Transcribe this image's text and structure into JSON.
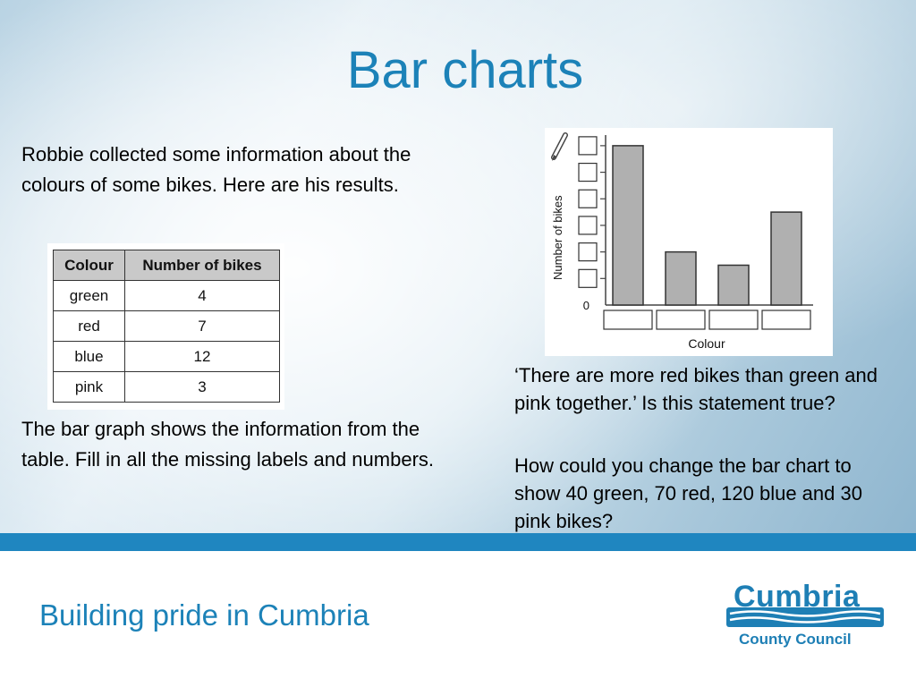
{
  "slide": {
    "title": "Bar charts",
    "intro": "Robbie collected some information about the colours of some bikes. Here are his results.",
    "instructions": "The bar graph shows the information from the table. Fill in all the missing labels and numbers.",
    "question1": "‘There are more red bikes than green and pink together.’ Is this statement true?",
    "question2": "How could you change the bar chart to show 40 green, 70 red, 120 blue and 30 pink bikes?"
  },
  "table": {
    "headers": [
      "Colour",
      "Number of bikes"
    ],
    "rows": [
      [
        "green",
        "4"
      ],
      [
        "red",
        "7"
      ],
      [
        "blue",
        "12"
      ],
      [
        "pink",
        "3"
      ]
    ]
  },
  "chart_data": {
    "type": "bar",
    "categories": [
      "",
      "",
      "",
      ""
    ],
    "values": [
      12,
      4,
      3,
      7
    ],
    "xlabel": "Colour",
    "ylabel": "Number of bikes",
    "y_tick_labels": [
      "0"
    ],
    "ylim": [
      0,
      12.8
    ],
    "grid": false,
    "bar_color": "#b0b0b0"
  },
  "footer": {
    "text": "Building pride in Cumbria",
    "logo_name": "Cumbria",
    "logo_sub": "County Council"
  },
  "colors": {
    "accent": "#1c82b8",
    "band": "#1f86c0"
  }
}
